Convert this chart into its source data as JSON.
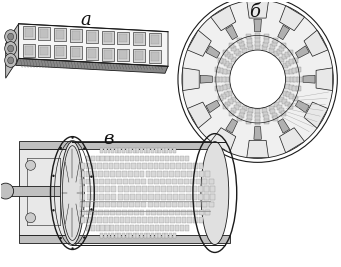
{
  "background_color": "#ffffff",
  "label_a": "а",
  "label_b": "б",
  "label_v": "в",
  "fig_width": 3.41,
  "fig_height": 2.67,
  "dpi": 100,
  "lc": "#1a1a1a",
  "lc_light": "#555555",
  "white": "#ffffff",
  "light_gray": "#e8e8e8",
  "mid_gray": "#c0c0c0",
  "dark_gray": "#888888",
  "very_dark": "#333333"
}
